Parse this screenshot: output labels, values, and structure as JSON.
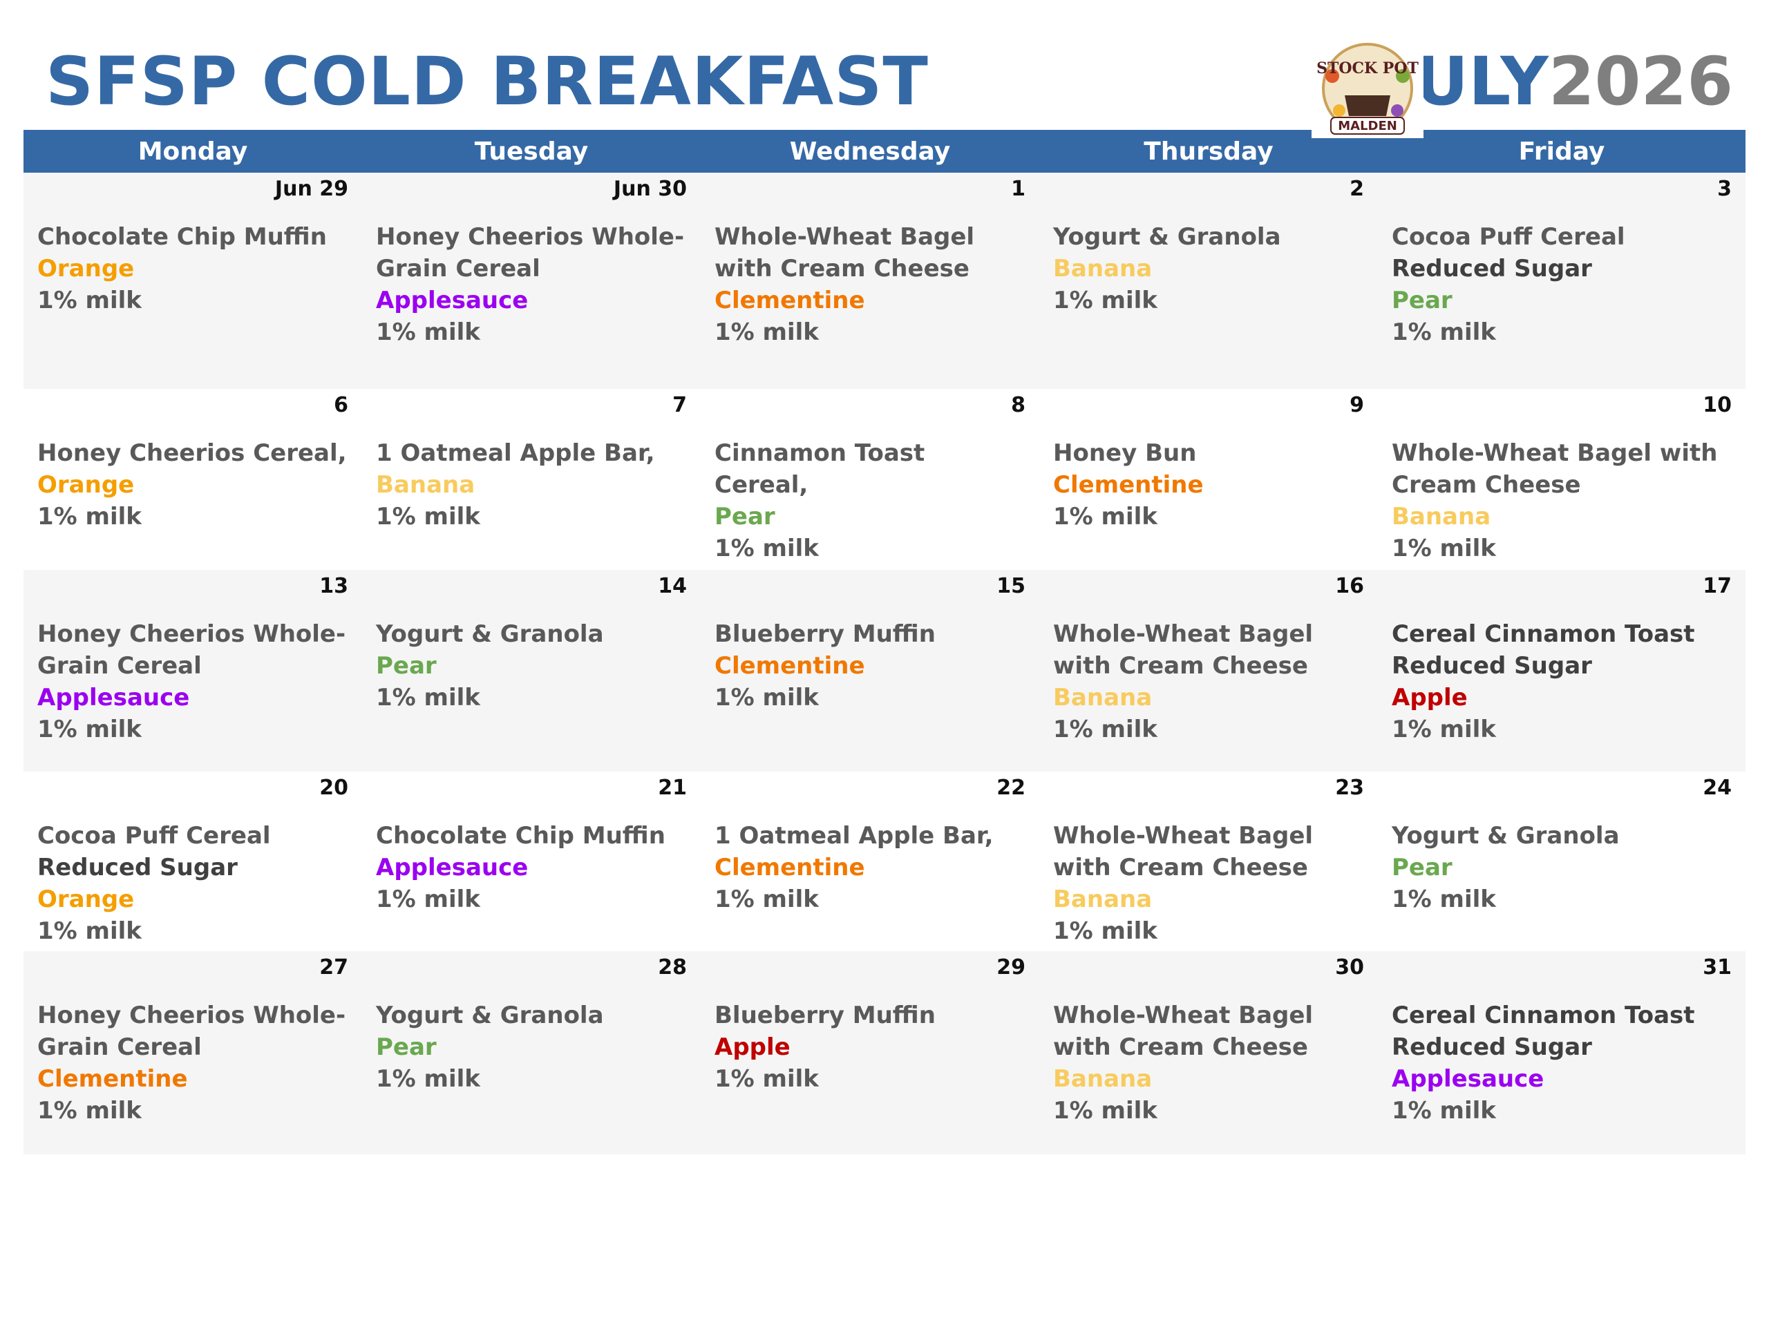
{
  "header": {
    "title": "SFSP COLD BREAKFAST",
    "month": "JULY",
    "year": "2026",
    "logo_top": "STOCK POT",
    "logo_bottom": "MALDEN"
  },
  "days": [
    "Monday",
    "Tuesday",
    "Wednesday",
    "Thursday",
    "Friday"
  ],
  "weeks": [
    {
      "cells": [
        {
          "date": "Jun 29",
          "lines": [
            {
              "text": "Chocolate Chip Muffin",
              "color": "#595959"
            },
            {
              "text": "Orange",
              "color": "#f59e00"
            },
            {
              "text": "1% milk",
              "color": "#595959"
            }
          ]
        },
        {
          "date": "Jun 30",
          "lines": [
            {
              "text": "Honey Cheerios Whole-Grain Cereal",
              "color": "#595959"
            },
            {
              "text": "Applesauce",
              "color": "#9b00f0"
            },
            {
              "text": "1% milk",
              "color": "#595959"
            }
          ]
        },
        {
          "date": "1",
          "lines": [
            {
              "text": "Whole-Wheat Bagel with Cream Cheese",
              "color": "#595959"
            },
            {
              "text": "Clementine",
              "color": "#f07800"
            },
            {
              "text": "1% milk",
              "color": "#595959"
            }
          ]
        },
        {
          "date": "2",
          "lines": [
            {
              "text": "Yogurt & Granola",
              "color": "#595959"
            },
            {
              "text": "Banana",
              "color": "#f8cb5e"
            },
            {
              "text": "1% milk",
              "color": "#595959"
            }
          ]
        },
        {
          "date": "3",
          "lines": [
            {
              "text": "Cocoa Puff Cereal",
              "color": "#595959"
            },
            {
              "text": "Reduced Sugar",
              "color": "#404040"
            },
            {
              "text": "Pear",
              "color": "#6aa84f"
            },
            {
              "text": "1% milk",
              "color": "#595959"
            }
          ]
        }
      ]
    },
    {
      "cells": [
        {
          "date": "6",
          "lines": [
            {
              "text": "Honey Cheerios Cereal,",
              "color": "#595959"
            },
            {
              "text": "Orange",
              "color": "#f59e00"
            },
            {
              "text": "1% milk",
              "color": "#595959"
            }
          ]
        },
        {
          "date": "7",
          "lines": [
            {
              "text": "1 Oatmeal Apple Bar,",
              "color": "#595959"
            },
            {
              "text": "Banana",
              "color": "#f8cb5e"
            },
            {
              "text": "1% milk",
              "color": "#595959"
            }
          ]
        },
        {
          "date": "8",
          "lines": [
            {
              "text": "Cinnamon Toast Cereal,",
              "color": "#595959"
            },
            {
              "text": "Pear",
              "color": "#6aa84f"
            },
            {
              "text": "1% milk",
              "color": "#595959"
            }
          ]
        },
        {
          "date": "9",
          "lines": [
            {
              "text": "Honey Bun",
              "color": "#595959"
            },
            {
              "text": "Clementine",
              "color": "#f07800"
            },
            {
              "text": "1% milk",
              "color": "#595959"
            }
          ]
        },
        {
          "date": "10",
          "lines": [
            {
              "text": "Whole-Wheat Bagel with Cream Cheese",
              "color": "#595959"
            },
            {
              "text": "Banana",
              "color": "#f8cb5e"
            },
            {
              "text": "1% milk",
              "color": "#595959"
            }
          ]
        }
      ]
    },
    {
      "cells": [
        {
          "date": "13",
          "lines": [
            {
              "text": "Honey Cheerios Whole-Grain Cereal",
              "color": "#595959"
            },
            {
              "text": "Applesauce",
              "color": "#9b00f0"
            },
            {
              "text": "1% milk",
              "color": "#595959"
            }
          ]
        },
        {
          "date": "14",
          "lines": [
            {
              "text": "Yogurt & Granola",
              "color": "#595959"
            },
            {
              "text": "Pear",
              "color": "#6aa84f"
            },
            {
              "text": "1% milk",
              "color": "#595959"
            }
          ]
        },
        {
          "date": "15",
          "lines": [
            {
              "text": "Blueberry Muffin",
              "color": "#595959"
            },
            {
              "text": "Clementine",
              "color": "#f07800"
            },
            {
              "text": "1% milk",
              "color": "#595959"
            }
          ]
        },
        {
          "date": "16",
          "lines": [
            {
              "text": "Whole-Wheat Bagel with Cream Cheese",
              "color": "#595959"
            },
            {
              "text": "Banana",
              "color": "#f8cb5e"
            },
            {
              "text": "1% milk",
              "color": "#595959"
            }
          ]
        },
        {
          "date": "17",
          "lines": [
            {
              "text": "Cereal Cinnamon Toast",
              "color": "#404040"
            },
            {
              "text": "Reduced Sugar",
              "color": "#404040"
            },
            {
              "text": "Apple",
              "color": "#c00000"
            },
            {
              "text": "1% milk",
              "color": "#595959"
            }
          ]
        }
      ]
    },
    {
      "cells": [
        {
          "date": "20",
          "lines": [
            {
              "text": "Cocoa Puff Cereal",
              "color": "#595959"
            },
            {
              "text": "Reduced Sugar",
              "color": "#404040"
            },
            {
              "text": "Orange",
              "color": "#f59e00"
            },
            {
              "text": "1% milk",
              "color": "#595959"
            }
          ]
        },
        {
          "date": "21",
          "lines": [
            {
              "text": "Chocolate Chip Muffin",
              "color": "#595959"
            },
            {
              "text": "Applesauce",
              "color": "#9b00f0"
            },
            {
              "text": "1% milk",
              "color": "#595959"
            }
          ]
        },
        {
          "date": "22",
          "lines": [
            {
              "text": "1 Oatmeal Apple Bar,",
              "color": "#595959"
            },
            {
              "text": "Clementine",
              "color": "#f07800"
            },
            {
              "text": "1% milk",
              "color": "#595959"
            }
          ]
        },
        {
          "date": "23",
          "lines": [
            {
              "text": "Whole-Wheat Bagel with Cream Cheese",
              "color": "#595959"
            },
            {
              "text": "Banana",
              "color": "#f8cb5e"
            },
            {
              "text": "1% milk",
              "color": "#595959"
            }
          ]
        },
        {
          "date": "24",
          "lines": [
            {
              "text": "Yogurt & Granola",
              "color": "#595959"
            },
            {
              "text": "Pear",
              "color": "#6aa84f"
            },
            {
              "text": "1% milk",
              "color": "#595959"
            }
          ]
        }
      ]
    },
    {
      "cells": [
        {
          "date": "27",
          "lines": [
            {
              "text": "Honey Cheerios Whole-Grain Cereal",
              "color": "#595959"
            },
            {
              "text": "Clementine",
              "color": "#f07800"
            },
            {
              "text": "1% milk",
              "color": "#595959"
            }
          ]
        },
        {
          "date": "28",
          "lines": [
            {
              "text": "Yogurt & Granola",
              "color": "#595959"
            },
            {
              "text": "Pear",
              "color": "#6aa84f"
            },
            {
              "text": "1% milk",
              "color": "#595959"
            }
          ]
        },
        {
          "date": "29",
          "lines": [
            {
              "text": "Blueberry Muffin",
              "color": "#595959"
            },
            {
              "text": "Apple",
              "color": "#c00000"
            },
            {
              "text": "1% milk",
              "color": "#595959"
            }
          ]
        },
        {
          "date": "30",
          "lines": [
            {
              "text": "Whole-Wheat Bagel with Cream Cheese",
              "color": "#595959"
            },
            {
              "text": "Banana",
              "color": "#f8cb5e"
            },
            {
              "text": "1% milk",
              "color": "#595959"
            }
          ]
        },
        {
          "date": "31",
          "lines": [
            {
              "text": "Cereal Cinnamon Toast",
              "color": "#404040"
            },
            {
              "text": "Reduced Sugar",
              "color": "#404040"
            },
            {
              "text": "Applesauce",
              "color": "#9b00f0"
            },
            {
              "text": "1% milk",
              "color": "#595959"
            }
          ]
        }
      ]
    }
  ]
}
